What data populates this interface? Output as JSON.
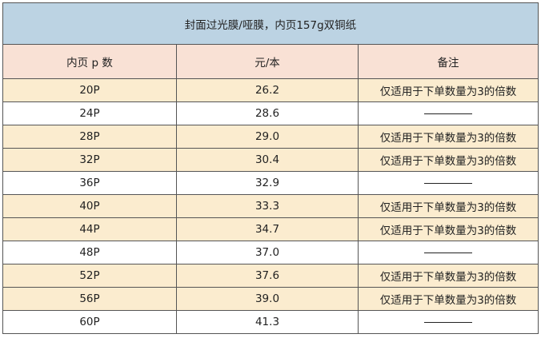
{
  "title": "封面过光膜/哑膜，内页157g双铜纸",
  "headers": [
    "内页 p 数",
    "元/本",
    "备注"
  ],
  "colors": {
    "title_bg": "#bcd3e3",
    "header_bg": "#f9e1d5",
    "highlight_row": "#fbeccf",
    "plain_row": "#ffffff"
  },
  "rows": [
    {
      "pages": "20P",
      "price": "26.2",
      "note": "仅适用于下单数量为3的倍数",
      "highlight": true
    },
    {
      "pages": "24P",
      "price": "28.6",
      "note": "——",
      "highlight": false
    },
    {
      "pages": "28P",
      "price": "29.0",
      "note": "仅适用于下单数量为3的倍数",
      "highlight": true
    },
    {
      "pages": "32P",
      "price": "30.4",
      "note": "仅适用于下单数量为3的倍数",
      "highlight": true
    },
    {
      "pages": "36P",
      "price": "32.9",
      "note": "——",
      "highlight": false
    },
    {
      "pages": "40P",
      "price": "33.3",
      "note": "仅适用于下单数量为3的倍数",
      "highlight": true
    },
    {
      "pages": "44P",
      "price": "34.7",
      "note": "仅适用于下单数量为3的倍数",
      "highlight": true
    },
    {
      "pages": "48P",
      "price": "37.0",
      "note": "——",
      "highlight": false
    },
    {
      "pages": "52P",
      "price": "37.6",
      "note": "仅适用于下单数量为3的倍数",
      "highlight": true
    },
    {
      "pages": "56P",
      "price": "39.0",
      "note": "仅适用于下单数量为3的倍数",
      "highlight": true
    },
    {
      "pages": "60P",
      "price": "41.3",
      "note": "——",
      "highlight": false
    }
  ]
}
